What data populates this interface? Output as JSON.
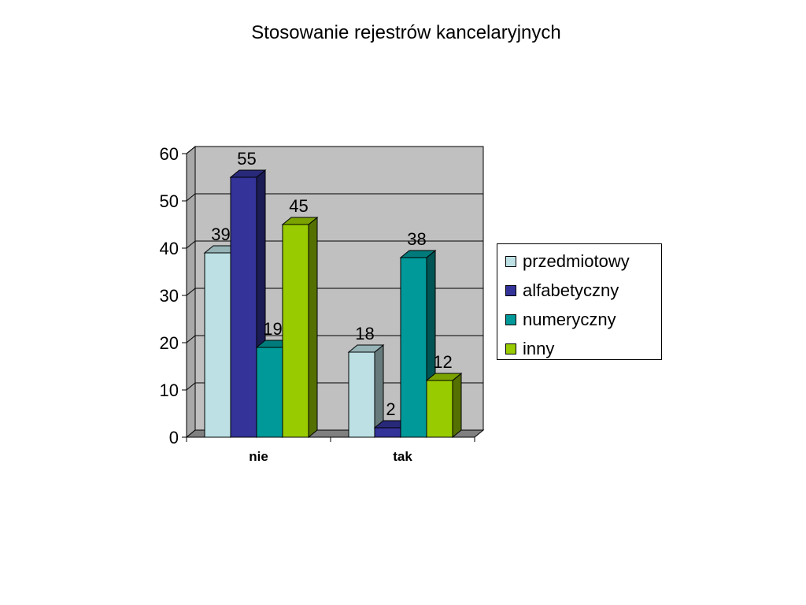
{
  "chart_data": {
    "type": "bar",
    "title": "Stosowanie rejestrów kancelaryjnych",
    "categories": [
      "nie",
      "tak"
    ],
    "series": [
      {
        "name": "przedmiotowy",
        "values": [
          39,
          18
        ],
        "color": "#BCE0E4"
      },
      {
        "name": "alfabetyczny",
        "values": [
          55,
          2
        ],
        "color": "#333399"
      },
      {
        "name": "numeryczny",
        "values": [
          19,
          38
        ],
        "color": "#009999"
      },
      {
        "name": "inny",
        "values": [
          45,
          12
        ],
        "color": "#99CC00"
      }
    ],
    "ylim": [
      0,
      60
    ],
    "yticks": [
      "0",
      "10",
      "20",
      "30",
      "40",
      "50",
      "60"
    ],
    "grid": true,
    "style": "3d-clustered",
    "plot_background": "#C0C0C0",
    "legend_position": "right"
  }
}
